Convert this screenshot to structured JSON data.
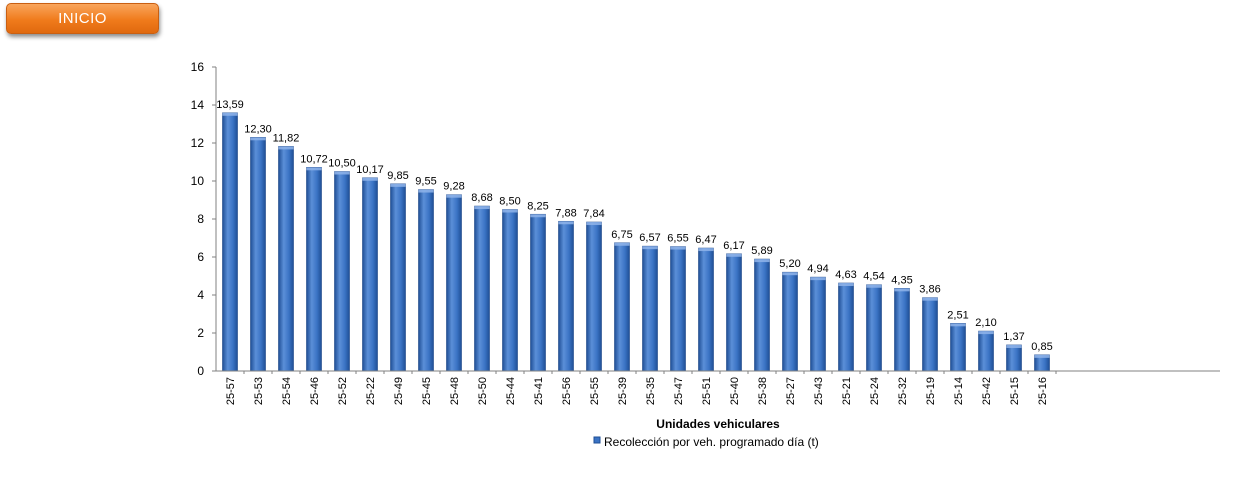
{
  "header": {
    "inicio_label": "INICIO"
  },
  "colors": {
    "bar": "#3a73c4",
    "bar_dark": "#1f4f96",
    "bar_light": "#6f9fe0",
    "button": "#f08a2e"
  },
  "chart_data": {
    "type": "bar",
    "title": "",
    "xlabel": "Unidades vehiculares",
    "ylabel": "",
    "ylim": [
      0,
      16
    ],
    "yticks": [
      0,
      2,
      4,
      6,
      8,
      10,
      12,
      14,
      16
    ],
    "legend_position": "bottom",
    "grid": false,
    "categories": [
      "25-57",
      "25-53",
      "25-54",
      "25-46",
      "25-52",
      "25-22",
      "25-49",
      "25-45",
      "25-48",
      "25-50",
      "25-44",
      "25-41",
      "25-56",
      "25-55",
      "25-39",
      "25-35",
      "25-47",
      "25-51",
      "25-40",
      "25-38",
      "25-27",
      "25-43",
      "25-21",
      "25-24",
      "25-32",
      "25-19",
      "25-14",
      "25-42",
      "25-15",
      "25-16"
    ],
    "series": [
      {
        "name": "Recolección por veh. programado día (t)",
        "values": [
          13.59,
          12.3,
          11.82,
          10.72,
          10.5,
          10.17,
          9.85,
          9.55,
          9.28,
          8.68,
          8.5,
          8.25,
          7.88,
          7.84,
          6.75,
          6.57,
          6.55,
          6.47,
          6.17,
          5.89,
          5.2,
          4.94,
          4.63,
          4.54,
          4.35,
          3.86,
          2.51,
          2.1,
          1.37,
          0.85
        ],
        "labels": [
          "13,59",
          "12,30",
          "11,82",
          "10,72",
          "10,50",
          "10,17",
          "9,85",
          "9,55",
          "9,28",
          "8,68",
          "8,50",
          "8,25",
          "7,88",
          "7,84",
          "6,75",
          "6,57",
          "6,55",
          "6,47",
          "6,17",
          "5,89",
          "5,20",
          "4,94",
          "4,63",
          "4,54",
          "4,35",
          "3,86",
          "2,51",
          "2,10",
          "1,37",
          "0,85"
        ]
      }
    ]
  }
}
